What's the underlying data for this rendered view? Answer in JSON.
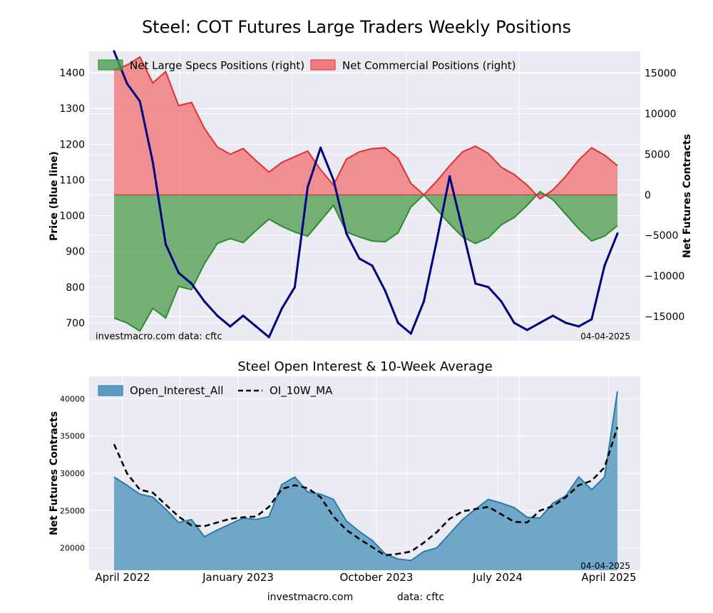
{
  "footer": {
    "site": "investmacro.com",
    "source": "data: cftc"
  },
  "colors": {
    "plot_bg": "#eaeaf2",
    "grid": "#ffffff",
    "specs_fill": "#4c9c4c",
    "specs_line": "#2e8b2e",
    "comm_fill": "#f07070",
    "comm_line": "#e03030",
    "price_line": "#000080",
    "oi_fill": "#5b9bc2",
    "oi_line": "#2d7aa8",
    "ma_line": "#000000"
  },
  "chart_data": [
    {
      "type": "area",
      "title": "Steel: COT Futures Large Traders Weekly Positions",
      "ylabel": "Price (blue line)",
      "y2label": "Net Futures Contracts",
      "ylim": [
        650,
        1460
      ],
      "y2lim": [
        -18000,
        17700
      ],
      "yticks": [
        700,
        800,
        900,
        1000,
        1100,
        1200,
        1300,
        1400
      ],
      "y2ticks": [
        -15000,
        -10000,
        -5000,
        0,
        5000,
        10000,
        15000
      ],
      "y2ticklabels": [
        "−15000",
        "−10000",
        "−5000",
        "0",
        "5000",
        "10000",
        "15000"
      ],
      "legend": [
        "Net Large Specs Positions (right)",
        "Net Commercial Positions (right)"
      ],
      "legend_position": "top-left",
      "grid": true,
      "watermark": "investmacro.com    data: cftc",
      "date_label": "04-04-2025",
      "series": [
        {
          "name": "Net Large Specs Positions (right)",
          "axis": "right",
          "x": [
            0,
            4,
            8,
            12,
            16,
            20,
            24,
            28,
            32,
            36,
            40,
            44,
            48,
            52,
            56,
            60,
            64,
            68,
            72,
            76,
            80,
            84,
            88,
            92,
            96,
            100,
            104,
            108,
            112,
            116,
            120,
            124,
            128,
            132,
            136,
            140,
            144,
            148,
            152,
            156
          ],
          "values": [
            -15200,
            -15800,
            -16800,
            -14000,
            -15200,
            -11300,
            -11700,
            -8500,
            -6000,
            -5400,
            -5900,
            -4400,
            -3000,
            -3900,
            -4600,
            -5100,
            -3200,
            -1300,
            -4600,
            -5200,
            -5700,
            -5800,
            -4700,
            -1500,
            0,
            -1800,
            -3600,
            -5200,
            -6000,
            -5300,
            -3700,
            -2800,
            -1300,
            400,
            -600,
            -2400,
            -4200,
            -5700,
            -5100,
            -3800
          ]
        },
        {
          "name": "Net Commercial Positions (right)",
          "axis": "right",
          "x": [
            0,
            4,
            8,
            12,
            16,
            20,
            24,
            28,
            32,
            36,
            40,
            44,
            48,
            52,
            56,
            60,
            64,
            68,
            72,
            76,
            80,
            84,
            88,
            92,
            96,
            100,
            104,
            108,
            112,
            116,
            120,
            124,
            128,
            132,
            136,
            140,
            144,
            148,
            152,
            156
          ],
          "values": [
            15400,
            16000,
            17000,
            13800,
            15200,
            11000,
            11400,
            8200,
            5900,
            5000,
            5700,
            4200,
            2800,
            4000,
            4700,
            5400,
            3100,
            1200,
            4400,
            5300,
            5700,
            5800,
            4500,
            1400,
            0,
            1700,
            3600,
            5300,
            6000,
            5100,
            3400,
            2500,
            1200,
            -500,
            600,
            2300,
            4300,
            5800,
            4900,
            3600
          ]
        },
        {
          "name": "Price",
          "axis": "left",
          "x": [
            0,
            4,
            8,
            12,
            16,
            20,
            24,
            28,
            32,
            36,
            40,
            44,
            48,
            52,
            56,
            60,
            64,
            68,
            72,
            76,
            80,
            84,
            88,
            92,
            96,
            100,
            104,
            108,
            112,
            116,
            120,
            124,
            128,
            132,
            136,
            140,
            144,
            148,
            152,
            156
          ],
          "values": [
            1460,
            1370,
            1320,
            1150,
            920,
            840,
            810,
            760,
            720,
            690,
            720,
            690,
            660,
            740,
            800,
            1080,
            1190,
            1100,
            950,
            880,
            860,
            790,
            700,
            670,
            760,
            930,
            1110,
            960,
            810,
            800,
            760,
            700,
            680,
            700,
            720,
            700,
            690,
            710,
            860,
            950
          ]
        }
      ]
    },
    {
      "type": "area",
      "title": "Steel Open Interest & 10-Week Average",
      "ylabel": "Net Futures Contracts",
      "ylim": [
        17000,
        43000
      ],
      "yticks": [
        20000,
        25000,
        30000,
        35000,
        40000
      ],
      "categories": [
        "April 2022",
        "January 2023",
        "October 2023",
        "July 2024",
        "April 2025"
      ],
      "legend": [
        "Open_Interest_All",
        "OI_10W_MA"
      ],
      "legend_position": "top-left",
      "grid": true,
      "date_label": "04-04-2025",
      "series": [
        {
          "name": "Open_Interest_All",
          "x": [
            0,
            4,
            8,
            12,
            16,
            20,
            24,
            28,
            32,
            36,
            40,
            44,
            48,
            52,
            56,
            60,
            64,
            68,
            72,
            76,
            80,
            84,
            88,
            92,
            96,
            100,
            104,
            108,
            112,
            116,
            120,
            124,
            128,
            132,
            136,
            140,
            144,
            148,
            152,
            156
          ],
          "values": [
            29500,
            28400,
            27200,
            26800,
            25200,
            23400,
            23800,
            21500,
            22400,
            23200,
            24000,
            23800,
            24200,
            28500,
            29500,
            27500,
            27200,
            26500,
            23600,
            22200,
            21000,
            19200,
            18500,
            18300,
            19500,
            20000,
            21900,
            23800,
            25200,
            26500,
            26000,
            25400,
            24100,
            24000,
            26000,
            27000,
            29500,
            27800,
            29500,
            41000
          ]
        },
        {
          "name": "OI_10W_MA",
          "x": [
            0,
            4,
            8,
            12,
            16,
            20,
            24,
            28,
            32,
            36,
            40,
            44,
            48,
            52,
            56,
            60,
            64,
            68,
            72,
            76,
            80,
            84,
            88,
            92,
            96,
            100,
            104,
            108,
            112,
            116,
            120,
            124,
            128,
            132,
            136,
            140,
            144,
            148,
            152,
            156
          ],
          "values": [
            33900,
            30000,
            27800,
            27400,
            25800,
            24200,
            23000,
            22900,
            23400,
            23900,
            24100,
            24200,
            25500,
            27900,
            28400,
            28000,
            26800,
            24200,
            22400,
            21200,
            20100,
            19000,
            19200,
            19500,
            20700,
            22100,
            23900,
            24900,
            25200,
            25500,
            24500,
            23500,
            23400,
            25000,
            25600,
            26800,
            28400,
            29000,
            30800,
            36200
          ]
        }
      ]
    }
  ]
}
